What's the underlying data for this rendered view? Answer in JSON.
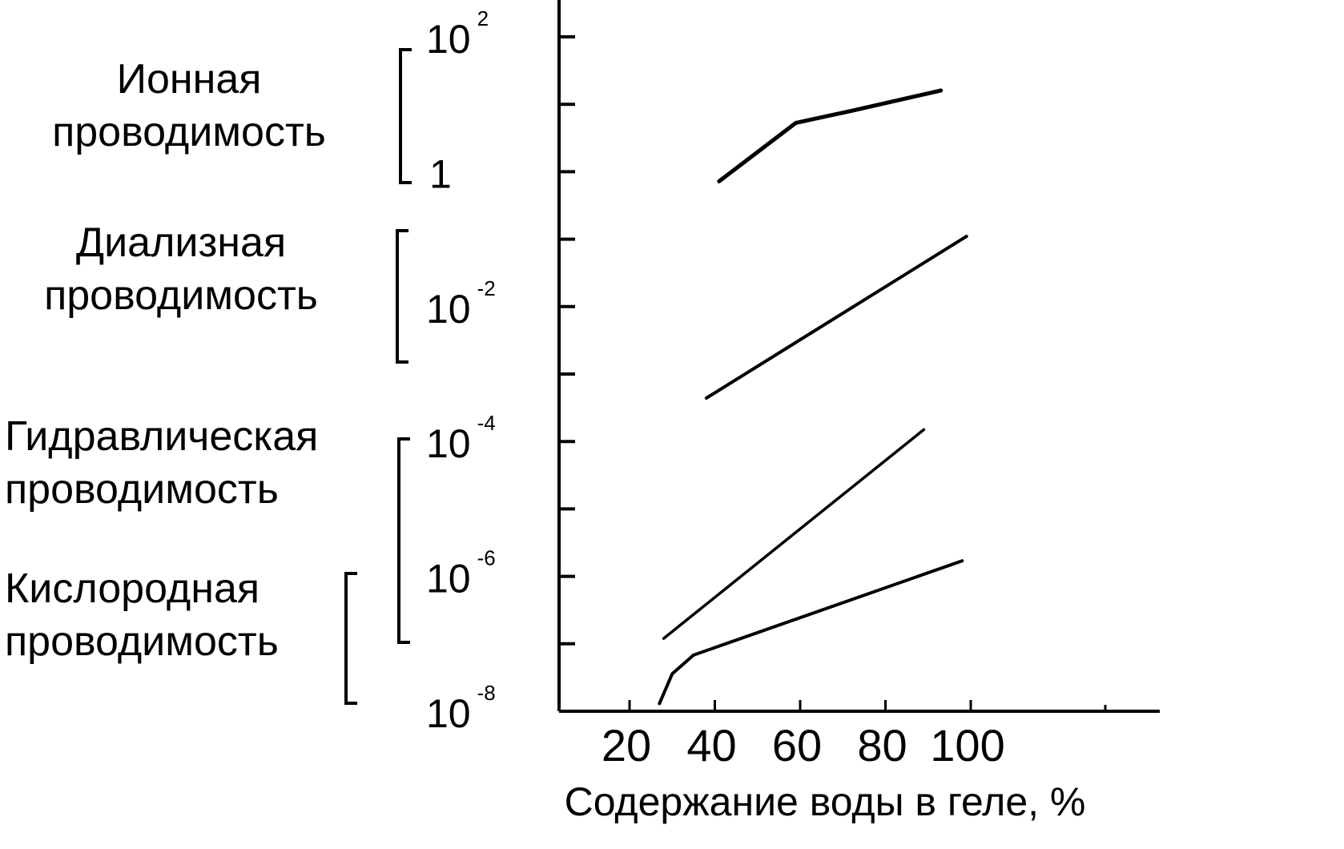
{
  "chart_data": {
    "type": "line",
    "xlabel": "Содержание воды в геле, %",
    "x_ticks": [
      20,
      40,
      60,
      80,
      100
    ],
    "xlim": [
      3,
      143
    ],
    "y_scale": "log",
    "y_ticks": [
      {
        "value": 100,
        "base": "10",
        "exp": "2"
      },
      {
        "value": 1,
        "base": "1",
        "exp": ""
      },
      {
        "value": 0.01,
        "base": "10",
        "exp": "-2"
      },
      {
        "value": 0.0001,
        "base": "10",
        "exp": "-4"
      },
      {
        "value": 1e-06,
        "base": "10",
        "exp": "-6"
      },
      {
        "value": 1e-08,
        "base": "10",
        "exp": "-8"
      }
    ],
    "series": [
      {
        "name": "Ионная проводимость",
        "x": [
          41,
          59,
          72,
          93
        ],
        "y": [
          0.72,
          5.3,
          8.0,
          16.0
        ]
      },
      {
        "name": "Диализная проводимость",
        "x": [
          38,
          99
        ],
        "y": [
          0.00044,
          0.11
        ]
      },
      {
        "name": "Гидравлическая проводимость",
        "x": [
          28,
          89
        ],
        "y": [
          1.2e-07,
          0.00015
        ]
      },
      {
        "name": "Кислородная проводимость",
        "x": [
          27,
          30,
          35,
          98
        ],
        "y": [
          1.3e-08,
          3.6e-08,
          6.8e-08,
          1.7e-06
        ]
      }
    ],
    "grid": false,
    "legend": "left"
  },
  "labels": {
    "ionic": [
      "Ионная",
      "проводимость"
    ],
    "dialysis": [
      "Диализная",
      "проводимость"
    ],
    "hydraulic": [
      "Гидравлическая",
      "проводимость"
    ],
    "oxygen": [
      "Кислородная",
      "проводимость"
    ]
  }
}
